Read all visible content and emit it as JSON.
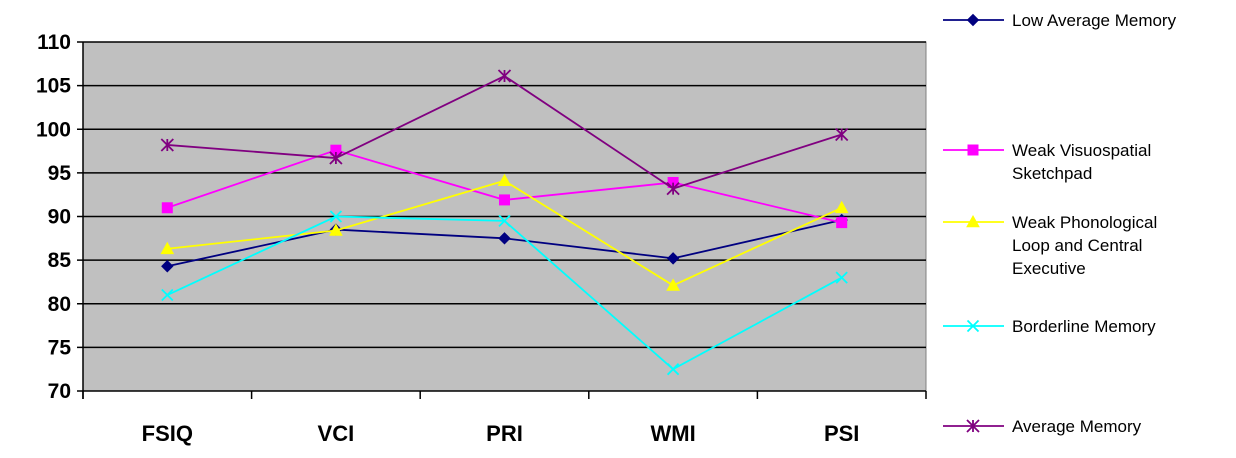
{
  "chart_data": {
    "type": "line",
    "title": "",
    "xlabel": "",
    "ylabel": "",
    "categories": [
      "FSIQ",
      "VCI",
      "PRI",
      "WMI",
      "PSI"
    ],
    "ylim": [
      70,
      110
    ],
    "yticks": [
      70,
      75,
      80,
      85,
      90,
      95,
      100,
      105,
      110
    ],
    "grid": "horizontal",
    "legend_position": "right",
    "plot_background": "#C0C0C0",
    "series": [
      {
        "name": "Low  Average Memory",
        "color": "#000080",
        "marker": "diamond",
        "values": [
          84.3,
          88.5,
          87.5,
          85.2,
          89.6
        ]
      },
      {
        "name": "Weak Visuospatial Sketchpad",
        "color": "#FF00FF",
        "marker": "square",
        "values": [
          91.0,
          97.6,
          91.9,
          93.9,
          89.3
        ]
      },
      {
        "name": "Weak Phonological Loop and Central Executive",
        "color": "#FFFF00",
        "marker": "triangle",
        "values": [
          86.3,
          88.4,
          94.1,
          82.1,
          91.0
        ]
      },
      {
        "name": "Borderline Memory",
        "color": "#00FFFF",
        "marker": "x",
        "values": [
          81.0,
          90.0,
          89.5,
          72.5,
          83.0
        ]
      },
      {
        "name": "Average Memory",
        "color": "#800080",
        "marker": "star",
        "values": [
          98.2,
          96.7,
          106.1,
          93.2,
          99.4
        ]
      }
    ],
    "legend_lines": [
      [
        "Low  Average Memory"
      ],
      [
        "Weak Visuospatial",
        "Sketchpad"
      ],
      [
        "Weak Phonological",
        "Loop and Central",
        "Executive"
      ],
      [
        "Borderline Memory"
      ],
      [
        "Average Memory"
      ]
    ]
  }
}
